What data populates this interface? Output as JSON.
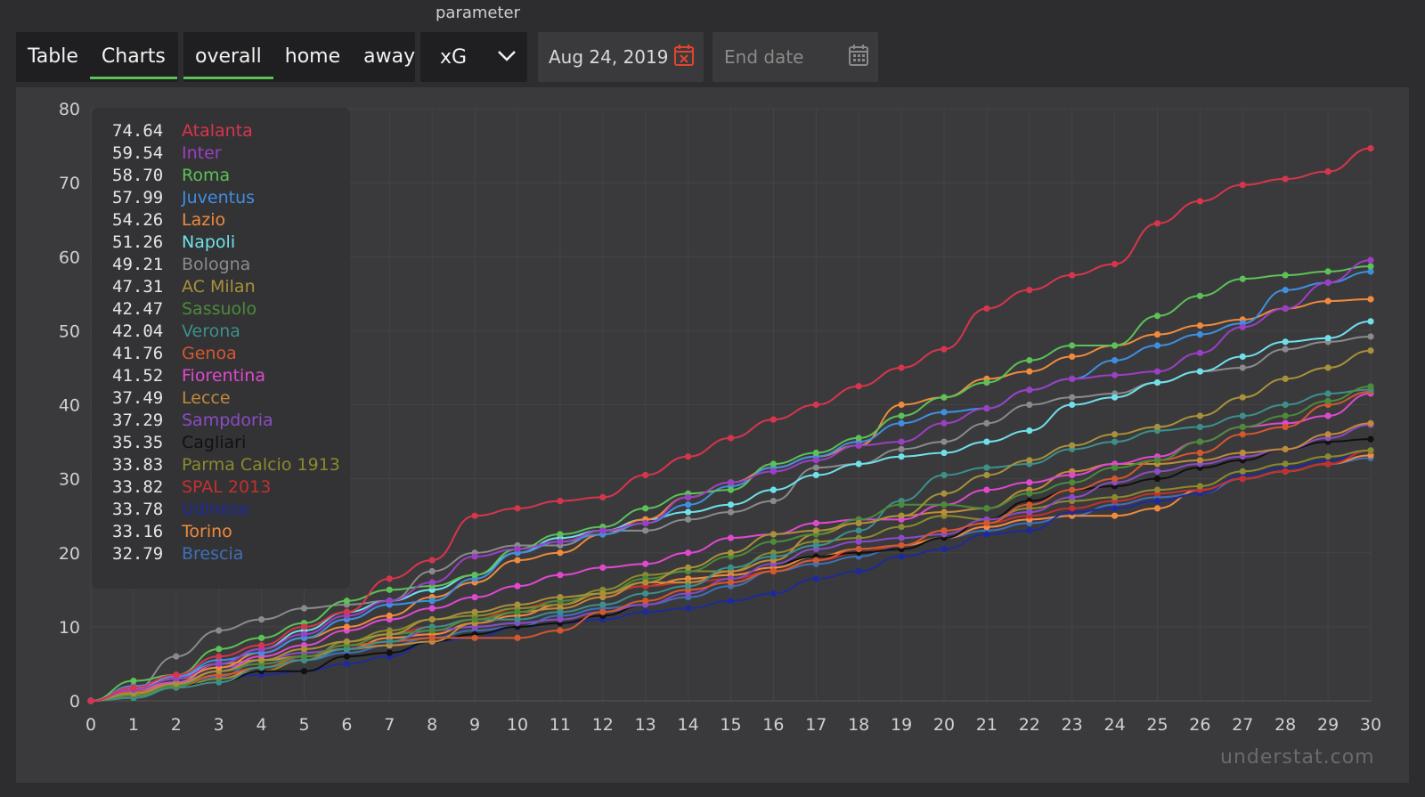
{
  "parameter_label": "parameter",
  "view_tabs": [
    {
      "label": "Table",
      "active": false
    },
    {
      "label": "Charts",
      "active": true
    }
  ],
  "location_tabs": [
    {
      "label": "overall",
      "active": true
    },
    {
      "label": "home",
      "active": false
    },
    {
      "label": "away",
      "active": false
    }
  ],
  "parameter_select": {
    "value": "xG",
    "icon": "chevron-down-icon"
  },
  "start_date": {
    "value": "Aug 24, 2019",
    "icon": "calendar-clear-icon"
  },
  "end_date": {
    "placeholder": "End date",
    "icon": "calendar-icon"
  },
  "watermark": "understat.com",
  "colors": {
    "background": "#2d2d2f",
    "panel": "#3a3a3c",
    "active_underline": "#5cc157"
  },
  "chart_data": {
    "type": "line",
    "x": [
      0,
      1,
      2,
      3,
      4,
      5,
      6,
      7,
      8,
      9,
      10,
      11,
      12,
      13,
      14,
      15,
      16,
      17,
      18,
      19,
      20,
      21,
      22,
      23,
      24,
      25,
      26,
      27,
      28,
      29,
      30
    ],
    "xlim": [
      0,
      30
    ],
    "ylim": [
      0,
      80
    ],
    "y_ticks": [
      0,
      10,
      20,
      30,
      40,
      50,
      60,
      70,
      80
    ],
    "x_ticks": [
      0,
      1,
      2,
      3,
      4,
      5,
      6,
      7,
      8,
      9,
      10,
      11,
      12,
      13,
      14,
      15,
      16,
      17,
      18,
      19,
      20,
      21,
      22,
      23,
      24,
      25,
      26,
      27,
      28,
      29,
      30
    ],
    "grid": true,
    "legend_position": "top-left",
    "series": [
      {
        "name": "Atalanta",
        "total": "74.64",
        "color": "#d8354c",
        "values": [
          0,
          1.8,
          3.5,
          6,
          7.5,
          10,
          12,
          16.5,
          19,
          25,
          26,
          27,
          27.5,
          30.5,
          33,
          35.5,
          38,
          40,
          42.5,
          45,
          47.5,
          53,
          55.5,
          57.5,
          59,
          64.5,
          67.5,
          69.7,
          70.5,
          71.5,
          74.64
        ]
      },
      {
        "name": "Inter",
        "total": "59.54",
        "color": "#9b3fc4",
        "values": [
          0,
          1.5,
          3,
          5,
          7,
          9,
          11.5,
          13.5,
          16,
          19.5,
          20.5,
          21.5,
          23,
          24,
          27.5,
          29.5,
          31,
          32.5,
          34.5,
          35,
          37.5,
          39.5,
          42,
          43.5,
          44,
          44.5,
          47,
          50.5,
          53,
          56.5,
          59.54
        ]
      },
      {
        "name": "Roma",
        "total": "58.70",
        "color": "#5cc157",
        "values": [
          0,
          2.7,
          3.5,
          7,
          8.5,
          10.5,
          13.5,
          15,
          15.5,
          17,
          20.5,
          22.5,
          23.5,
          26,
          28,
          28.5,
          32,
          33.5,
          35.5,
          38.5,
          41,
          43,
          46,
          48,
          48,
          52,
          54.7,
          57,
          57.5,
          58,
          58.7
        ]
      },
      {
        "name": "Juventus",
        "total": "57.99",
        "color": "#3f8fe0",
        "values": [
          0,
          2,
          3.3,
          5.5,
          6.5,
          8.5,
          11,
          13,
          13.5,
          16.5,
          20,
          21.5,
          22.5,
          24,
          26.5,
          29,
          31.5,
          33,
          35,
          37.5,
          39,
          39.5,
          42,
          43.5,
          46,
          48,
          49.5,
          51,
          55.5,
          56.5,
          57.99
        ]
      },
      {
        "name": "Lazio",
        "total": "54.26",
        "color": "#f08a3c",
        "values": [
          0,
          1.5,
          3,
          4.5,
          6.5,
          8.5,
          10,
          11.5,
          14,
          16,
          19,
          20,
          22.5,
          24.5,
          27.5,
          29.5,
          31.5,
          33,
          34.5,
          40,
          41,
          43.5,
          44.5,
          46.5,
          48,
          49.5,
          50.7,
          51.5,
          53,
          54,
          54.26
        ]
      },
      {
        "name": "Napoli",
        "total": "51.26",
        "color": "#6fe0ea",
        "values": [
          0,
          1.8,
          3.3,
          5,
          7,
          9.5,
          12,
          13.5,
          15,
          17,
          20,
          22,
          23,
          24.5,
          25.5,
          26.5,
          28.5,
          30.5,
          32,
          33,
          33.5,
          35,
          36.5,
          40,
          41,
          43,
          44.5,
          46.5,
          48.5,
          49,
          51.26
        ]
      },
      {
        "name": "Bologna",
        "total": "49.21",
        "color": "#8a8a8c",
        "values": [
          0,
          1.5,
          6,
          9.5,
          11,
          12.5,
          13,
          13.5,
          17.5,
          20,
          21,
          21,
          23,
          23,
          24.5,
          25.5,
          27,
          31.5,
          32,
          34,
          35,
          37.5,
          40,
          41,
          41.5,
          43,
          44.5,
          45,
          47.5,
          48.5,
          49.21
        ]
      },
      {
        "name": "AC Milan",
        "total": "47.31",
        "color": "#a8913a",
        "values": [
          0,
          1,
          2.3,
          4,
          5.5,
          7,
          8,
          9,
          11,
          12,
          13,
          14,
          14.5,
          16,
          18,
          20,
          22.5,
          23,
          24,
          25,
          28,
          30.5,
          32.5,
          34.5,
          36,
          37,
          38.5,
          41,
          43.5,
          45,
          47.31
        ]
      },
      {
        "name": "Sassuolo",
        "total": "42.47",
        "color": "#4d8a3a",
        "values": [
          0,
          0.8,
          2,
          4,
          5,
          6,
          7.5,
          9,
          9.5,
          11,
          12,
          13.5,
          14.5,
          16.5,
          17.5,
          19.5,
          21.5,
          22.5,
          24.5,
          26.5,
          26.5,
          26,
          28,
          29.5,
          31.5,
          32.5,
          35,
          37,
          38.5,
          40.5,
          42.47
        ]
      },
      {
        "name": "Verona",
        "total": "42.04",
        "color": "#3d8f8a",
        "values": [
          0,
          0.4,
          1.8,
          2.5,
          4.5,
          5.5,
          7,
          8,
          10,
          11,
          11,
          12,
          13,
          14.5,
          15.5,
          18,
          19.5,
          21,
          23,
          27,
          30.5,
          31.5,
          32,
          34,
          35,
          36.5,
          37,
          38.5,
          40,
          41.5,
          42.04
        ]
      },
      {
        "name": "Genoa",
        "total": "41.76",
        "color": "#d4582e",
        "values": [
          0,
          1.2,
          2,
          3.5,
          4.5,
          6,
          7.5,
          8,
          8.5,
          8.5,
          8.5,
          9.5,
          12,
          13.5,
          15,
          16,
          17.5,
          19,
          20.5,
          21,
          23,
          24,
          26.5,
          28.5,
          30,
          32.5,
          33.5,
          36,
          37,
          40,
          41.76
        ]
      },
      {
        "name": "Fiorentina",
        "total": "41.52",
        "color": "#e048d0",
        "values": [
          0,
          1.2,
          2.5,
          4,
          6,
          7.5,
          9.5,
          11,
          12.5,
          14,
          15.5,
          17,
          18,
          18.5,
          20,
          22,
          22.5,
          24,
          24.5,
          24.5,
          26.5,
          28.5,
          29.5,
          30.5,
          32,
          33,
          35,
          37,
          37.5,
          38.5,
          41.52
        ]
      },
      {
        "name": "Lecce",
        "total": "37.49",
        "color": "#c08a3a",
        "values": [
          0,
          1.5,
          2.5,
          5,
          5.5,
          6,
          7,
          7.5,
          8,
          10.5,
          12,
          12.5,
          14,
          16,
          16,
          17.5,
          19,
          22.5,
          24,
          25,
          25.5,
          26,
          28.5,
          31,
          32,
          32,
          32.5,
          33.5,
          34,
          36,
          37.49
        ]
      },
      {
        "name": "Sampdoria",
        "total": "37.29",
        "color": "#8a4cc4",
        "values": [
          0,
          1.5,
          3,
          4.5,
          5.5,
          6.5,
          7,
          8,
          9.5,
          10,
          10.5,
          11,
          12,
          13,
          14.5,
          16.5,
          18.5,
          20.5,
          21.5,
          22,
          22.5,
          24.5,
          25.5,
          27.5,
          29.5,
          31,
          32,
          33,
          34,
          35.5,
          37.29
        ]
      },
      {
        "name": "Cagliari",
        "total": "35.35",
        "color": "#111111",
        "values": [
          0,
          1.2,
          2,
          2.5,
          4,
          4,
          6,
          6.5,
          8,
          9,
          10,
          10.5,
          11.5,
          13,
          14.5,
          16.5,
          18.5,
          19.5,
          20,
          20.5,
          22,
          24.5,
          27,
          28.5,
          29,
          30,
          31.5,
          32.5,
          34,
          35,
          35.35
        ]
      },
      {
        "name": "Parma Calcio 1913",
        "total": "33.83",
        "color": "#8a8a2e",
        "values": [
          0,
          0.7,
          1.8,
          3,
          4,
          5.5,
          8,
          9.5,
          11,
          11.5,
          12.5,
          13,
          15,
          17,
          17.5,
          17.5,
          20,
          21.5,
          22,
          23.5,
          25,
          24.5,
          26,
          27,
          27.5,
          28.5,
          29,
          31,
          32,
          33,
          33.83
        ]
      },
      {
        "name": "SPAL 2013",
        "total": "33.82",
        "color": "#c4302e",
        "values": [
          0,
          0.8,
          1.8,
          3,
          4,
          6,
          7.5,
          9,
          10,
          11,
          12.5,
          13.5,
          14.5,
          15.5,
          16,
          16.5,
          17.5,
          19,
          20,
          21,
          23,
          24,
          25,
          26,
          27,
          28,
          28.5,
          30,
          31,
          32,
          33.82
        ]
      },
      {
        "name": "Udinese",
        "total": "33.78",
        "color": "#1e2a9a",
        "values": [
          0,
          1,
          2,
          3,
          3.5,
          4,
          5,
          6,
          8,
          8.5,
          10,
          10.5,
          11,
          12,
          12.5,
          13.5,
          14.5,
          16.5,
          17.5,
          19.5,
          20.5,
          22.5,
          23,
          25.5,
          26,
          27,
          28,
          30.5,
          31.5,
          32.5,
          33.78
        ]
      },
      {
        "name": "Torino",
        "total": "33.16",
        "color": "#f08a3c",
        "values": [
          0,
          1,
          1.8,
          3,
          4.5,
          6,
          7,
          8.5,
          9,
          10.5,
          11.5,
          13,
          14.5,
          15.5,
          16.5,
          17,
          18,
          19.5,
          20.5,
          21,
          22,
          23.5,
          24.5,
          25,
          25,
          26,
          28.5,
          30,
          31,
          32,
          33.16
        ]
      },
      {
        "name": "Brescia",
        "total": "32.79",
        "color": "#3f6fb8",
        "values": [
          0,
          1.2,
          2.2,
          3.3,
          5.5,
          5.5,
          6.5,
          7.5,
          8.5,
          9.5,
          10,
          11.5,
          12.5,
          13,
          14,
          15.5,
          17.5,
          18.5,
          19.5,
          21,
          22,
          23,
          24,
          25,
          26.5,
          27.5,
          28,
          30,
          31,
          32,
          32.79
        ]
      }
    ]
  }
}
